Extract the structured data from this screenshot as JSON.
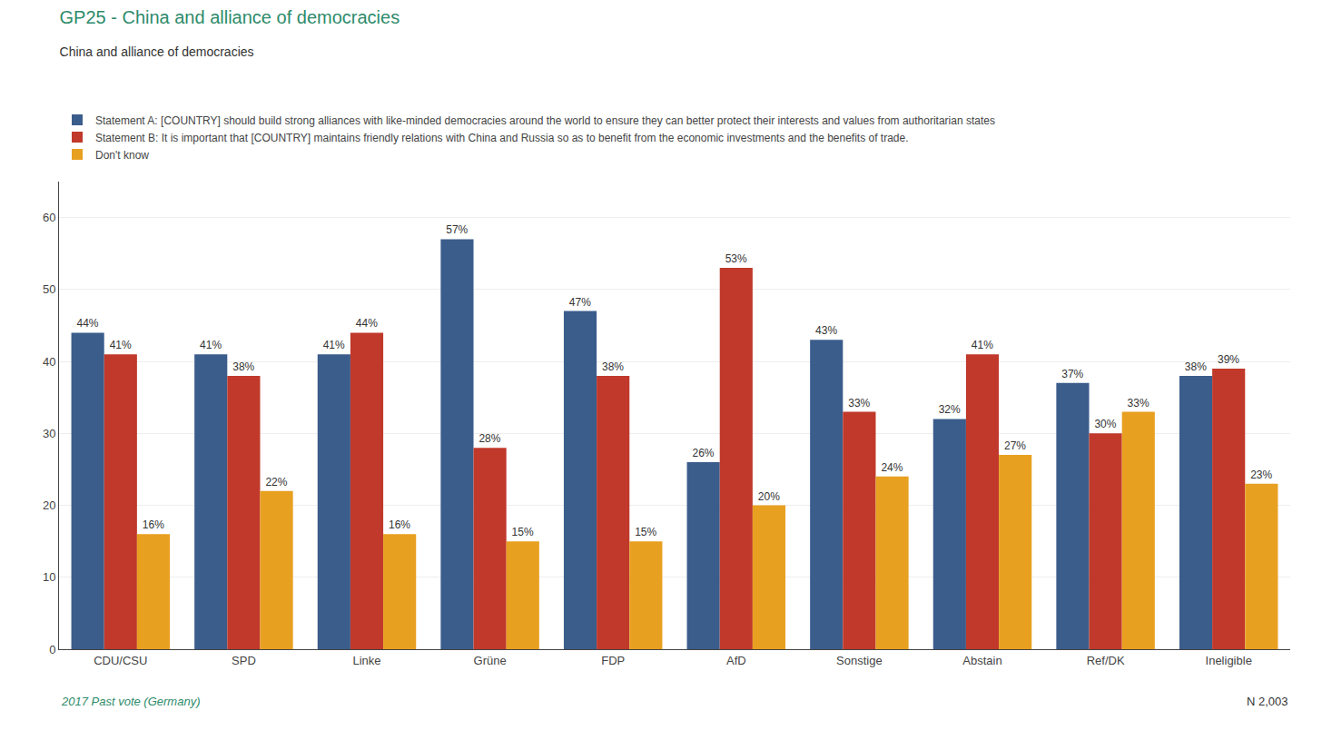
{
  "chart_data": {
    "type": "bar",
    "title": "GP25 - China and alliance of democracies",
    "subtitle": "China and alliance of democracies",
    "categories": [
      "CDU/CSU",
      "SPD",
      "Linke",
      "Grüne",
      "FDP",
      "AfD",
      "Sonstige",
      "Abstain",
      "Ref/DK",
      "Ineligible"
    ],
    "series": [
      {
        "name": "Statement A: [COUNTRY] should build strong alliances with like-minded democracies around the world to ensure they can better protect their interests and values from authoritarian states",
        "color": "#3B5D8C",
        "values": [
          44,
          41,
          41,
          57,
          47,
          26,
          43,
          32,
          37,
          38
        ],
        "value_labels": [
          "44%",
          "41%",
          "41%",
          "57%",
          "47%",
          "26%",
          "43%",
          "32%",
          "37%",
          "38%"
        ]
      },
      {
        "name": "Statement B: It is important that [COUNTRY] maintains friendly relations with China and Russia so as to benefit from the economic investments and the benefits of trade.",
        "color": "#C0392B",
        "values": [
          41,
          38,
          44,
          28,
          38,
          53,
          33,
          41,
          30,
          39
        ],
        "value_labels": [
          "41%",
          "38%",
          "44%",
          "28%",
          "38%",
          "53%",
          "33%",
          "41%",
          "30%",
          "39%"
        ]
      },
      {
        "name": "Don't know",
        "color": "#E8A020",
        "values": [
          16,
          22,
          16,
          15,
          15,
          20,
          24,
          27,
          33,
          23
        ],
        "value_labels": [
          "16%",
          "22%",
          "16%",
          "15%",
          "15%",
          "20%",
          "24%",
          "27%",
          "33%",
          "23%"
        ]
      }
    ],
    "ylim": [
      0,
      65
    ],
    "yticks": [
      0,
      10,
      20,
      30,
      40,
      50,
      60
    ],
    "grid": true,
    "legend": "top",
    "data_labels": true,
    "annotations": [
      "2017 Past vote (Germany)",
      "N 2,003"
    ]
  }
}
